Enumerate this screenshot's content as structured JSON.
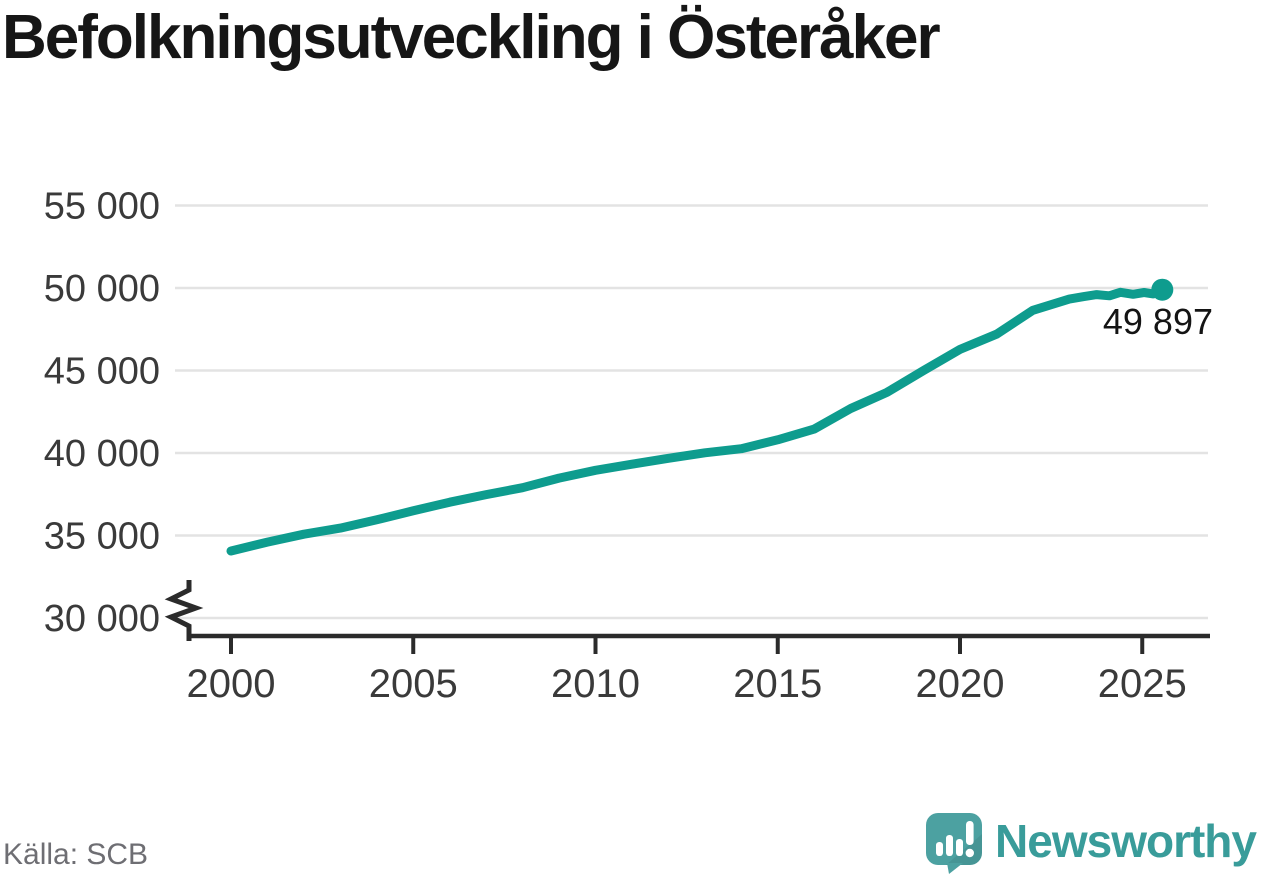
{
  "title": "Befolkningsutveckling i Österåker",
  "source_note": "Källa: SCB",
  "branding": {
    "wordmark": "Newsworthy",
    "icon": "newsworthy-speech-bubble-chart-icon",
    "icon_color": "#4CA1A1",
    "icon_glyph_color": "#FFFFFF",
    "wordmark_color": "#399C9A"
  },
  "colors": {
    "line": "#0E9C8E",
    "grid": "#E3E3E3",
    "axis": "#2B2B2B",
    "tick_label": "#3A3A3A",
    "annotation": "#141414",
    "title": "#161616",
    "source_text": "#6E6E73",
    "background": "#FFFFFF"
  },
  "chart_data": {
    "type": "line",
    "title": "Befolkningsutveckling i Österåker",
    "xlabel": "",
    "ylabel": "",
    "grid": true,
    "legend": "none",
    "y_axis_break": true,
    "xlim": [
      1998.5,
      2026.9
    ],
    "ylim": [
      30000,
      55000
    ],
    "x_ticks": [
      {
        "value": 2000,
        "label": "2000"
      },
      {
        "value": 2005,
        "label": "2005"
      },
      {
        "value": 2010,
        "label": "2010"
      },
      {
        "value": 2015,
        "label": "2015"
      },
      {
        "value": 2020,
        "label": "2020"
      },
      {
        "value": 2025,
        "label": "2025"
      }
    ],
    "y_ticks": [
      {
        "value": 55000,
        "label": "55 000"
      },
      {
        "value": 50000,
        "label": "50 000"
      },
      {
        "value": 45000,
        "label": "45 000"
      },
      {
        "value": 40000,
        "label": "40 000"
      },
      {
        "value": 35000,
        "label": "35 000"
      },
      {
        "value": 30000,
        "label": "30 000"
      }
    ],
    "series": [
      {
        "color": "#0E9C8E",
        "end_label": "49 897",
        "end_value": 49897,
        "points": [
          [
            2000,
            34060
          ],
          [
            2001,
            34600
          ],
          [
            2002,
            35080
          ],
          [
            2003,
            35450
          ],
          [
            2004,
            35950
          ],
          [
            2005,
            36500
          ],
          [
            2006,
            37020
          ],
          [
            2007,
            37480
          ],
          [
            2008,
            37900
          ],
          [
            2009,
            38480
          ],
          [
            2010,
            38950
          ],
          [
            2011,
            39320
          ],
          [
            2012,
            39680
          ],
          [
            2013,
            40010
          ],
          [
            2014,
            40260
          ],
          [
            2015,
            40800
          ],
          [
            2016,
            41450
          ],
          [
            2017,
            42700
          ],
          [
            2018,
            43680
          ],
          [
            2019,
            45000
          ],
          [
            2020,
            46280
          ],
          [
            2021,
            47200
          ],
          [
            2022,
            48650
          ],
          [
            2023,
            49330
          ],
          [
            2023.4,
            49480
          ],
          [
            2023.75,
            49600
          ],
          [
            2024.1,
            49530
          ],
          [
            2024.4,
            49740
          ],
          [
            2024.75,
            49620
          ],
          [
            2025.05,
            49730
          ],
          [
            2025.3,
            49640
          ],
          [
            2025.55,
            49897
          ]
        ]
      }
    ]
  }
}
